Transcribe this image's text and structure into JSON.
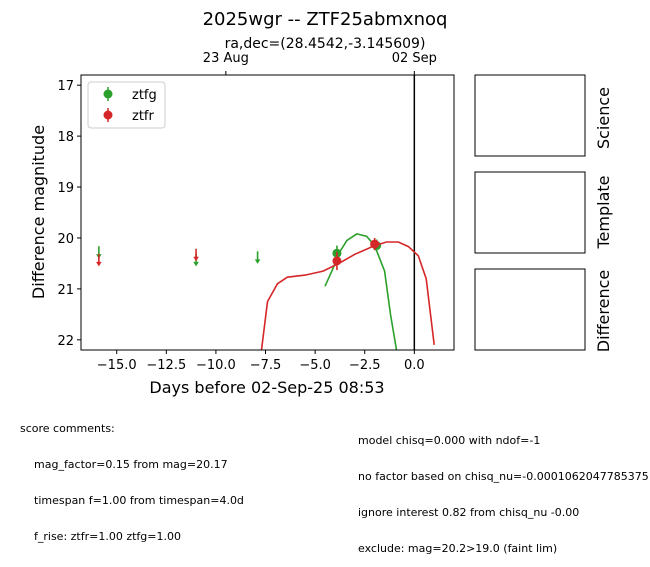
{
  "chart_data": {
    "type": "scatter",
    "title": "2025wgr -- ZTF25abmxnoq",
    "subtitle": "ra,dec=(28.4542,-3.145609)",
    "xlabel": "Days before 02-Sep-25 08:53",
    "ylabel": "Difference magnitude",
    "xlim": [
      -16.8,
      2.0
    ],
    "ylim": [
      22.2,
      16.8
    ],
    "y_inverted": true,
    "x_ticks": [
      -15.0,
      -12.5,
      -10.0,
      -7.5,
      -5.0,
      -2.5,
      0.0
    ],
    "x_tick_labels": [
      "−15.0",
      "−12.5",
      "−10.0",
      "−7.5",
      "−5.0",
      "−2.5",
      "0.0"
    ],
    "y_ticks": [
      17,
      18,
      19,
      20,
      21,
      22
    ],
    "top_axis_ticks": [
      {
        "x": -9.5,
        "label": "23 Aug"
      },
      {
        "x": 0.0,
        "label": "02 Sep"
      }
    ],
    "vertical_line_x": 0.0,
    "legend_position": "upper-left",
    "series": [
      {
        "name": "ztfg",
        "color": "#2ca02c",
        "detections": [
          {
            "x": -3.9,
            "y": 20.3,
            "err": 0.15
          },
          {
            "x": -1.9,
            "y": 20.15,
            "err": 0.12
          }
        ],
        "upper_limits": [
          {
            "x": -15.9,
            "y": 20.3
          },
          {
            "x": -11.0,
            "y": 20.45
          },
          {
            "x": -7.9,
            "y": 20.4
          }
        ],
        "model_curve": [
          [
            -4.5,
            20.95
          ],
          [
            -4.1,
            20.6
          ],
          [
            -3.8,
            20.3
          ],
          [
            -3.4,
            20.05
          ],
          [
            -2.9,
            19.92
          ],
          [
            -2.4,
            19.97
          ],
          [
            -2.0,
            20.15
          ],
          [
            -1.5,
            20.65
          ],
          [
            -1.2,
            21.5
          ],
          [
            -0.9,
            22.2
          ]
        ]
      },
      {
        "name": "ztfr",
        "color": "#d62728",
        "detections": [
          {
            "x": -3.9,
            "y": 20.45,
            "err": 0.18
          },
          {
            "x": -2.0,
            "y": 20.12,
            "err": 0.12
          }
        ],
        "upper_limits": [
          {
            "x": -15.9,
            "y": 20.45
          },
          {
            "x": -11.0,
            "y": 20.35
          }
        ],
        "model_curve": [
          [
            -7.7,
            22.2
          ],
          [
            -7.4,
            21.25
          ],
          [
            -6.9,
            20.9
          ],
          [
            -6.4,
            20.77
          ],
          [
            -5.5,
            20.73
          ],
          [
            -4.6,
            20.65
          ],
          [
            -3.8,
            20.5
          ],
          [
            -3.0,
            20.32
          ],
          [
            -2.0,
            20.15
          ],
          [
            -1.4,
            20.08
          ],
          [
            -0.8,
            20.08
          ],
          [
            -0.3,
            20.17
          ],
          [
            0.2,
            20.35
          ],
          [
            0.6,
            20.8
          ],
          [
            1.0,
            22.1
          ]
        ]
      }
    ]
  },
  "side_panels": [
    "Science",
    "Template",
    "Difference"
  ],
  "comments": {
    "header": "score comments:",
    "left_lines": [
      "mag_factor=0.15 from mag=20.17",
      "timespan f=1.00 from timespan=4.0d",
      "f_rise: ztfr=1.00 ztfg=1.00"
    ],
    "right_lines": [
      "model chisq=0.000 with ndof=-1",
      "no factor based on chisq_nu=-0.0001062047785375",
      "ignore interest 0.82 from chisq_nu -0.00",
      "exclude: mag=20.2>19.0 (faint lim)"
    ]
  }
}
